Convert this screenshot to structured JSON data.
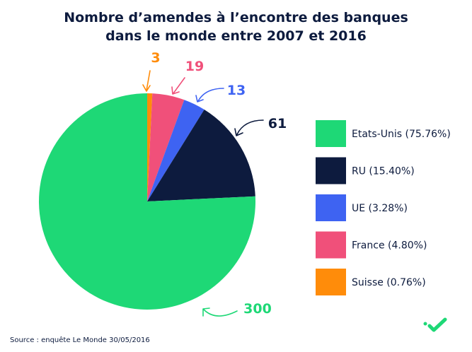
{
  "chart_data": {
    "type": "pie",
    "title": "Nombre d’amendes à l’encontre des banques dans le monde entre 2007 et 2016",
    "title_lines": [
      "Nombre d’amendes à l’encontre des banques",
      "dans le monde entre 2007 et 2016"
    ],
    "slices": [
      {
        "name": "Suisse",
        "value": 3,
        "label": "3",
        "legend": "Suisse (0.76%)",
        "color": "#ff8c0a"
      },
      {
        "name": "France",
        "value": 19,
        "label": "19",
        "legend": "France (4.80%)",
        "color": "#f0507a"
      },
      {
        "name": "UE",
        "value": 13,
        "label": "13",
        "legend": "UE (3.28%)",
        "color": "#3e63f2"
      },
      {
        "name": "RU",
        "value": 61,
        "label": "61",
        "legend": "RU (15.40%)",
        "color": "#0d1b3e"
      },
      {
        "name": "Etats-Unis",
        "value": 300,
        "label": "300",
        "legend": "Etats-Unis (75.76%)",
        "color": "#1ed876"
      }
    ],
    "legend_order": [
      "Etats-Unis",
      "RU",
      "UE",
      "France",
      "Suisse"
    ],
    "legend_position": "right",
    "source": "Source : enquête Le Monde 30/05/2016"
  },
  "logo": "checkmark-logo"
}
